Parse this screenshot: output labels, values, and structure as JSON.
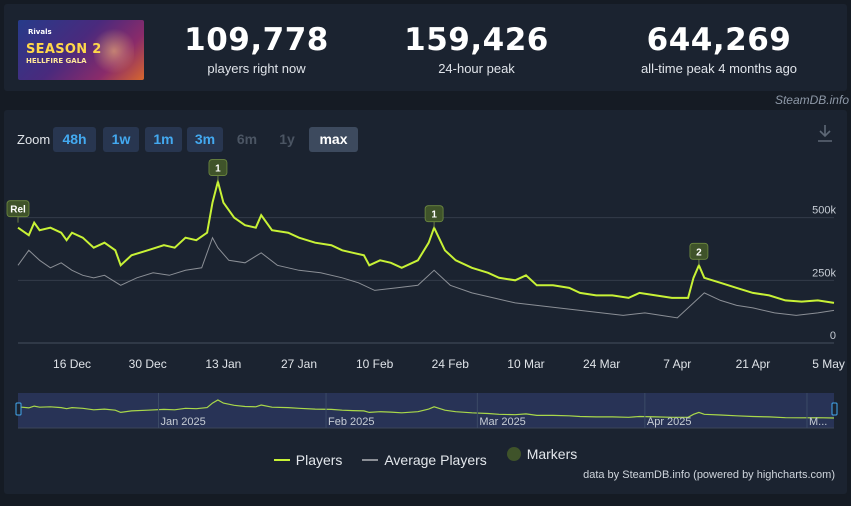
{
  "game": {
    "banner_line0": "Rivals",
    "banner_line1": "SEASON 2",
    "banner_line2": "HELLFIRE GALA"
  },
  "stats": [
    {
      "value": "109,778",
      "label": "players right now"
    },
    {
      "value": "159,426",
      "label": "24-hour peak"
    },
    {
      "value": "644,269",
      "label": "all-time peak 4 months ago"
    }
  ],
  "credit_top": "SteamDB.info",
  "zoom": {
    "label": "Zoom",
    "buttons": [
      {
        "label": "48h",
        "state": "on"
      },
      {
        "label": "1w",
        "state": "on"
      },
      {
        "label": "1m",
        "state": "on"
      },
      {
        "label": "3m",
        "state": "on"
      },
      {
        "label": "6m",
        "state": "off"
      },
      {
        "label": "1y",
        "state": "off"
      },
      {
        "label": "max",
        "state": "sel"
      }
    ]
  },
  "icons": {
    "download": "download-icon"
  },
  "legend": {
    "players": "Players",
    "average": "Average Players",
    "markers": "Markers"
  },
  "credit_bottom": "data by SteamDB.info (powered by highcharts.com)",
  "colors": {
    "players": "#c8f236",
    "average": "#8b8f96",
    "marker": "#3f532a",
    "accent": "#43a9f0"
  },
  "chart_data": {
    "type": "line",
    "x_unit": "date",
    "y_ticks": [
      "0",
      "250k",
      "500k"
    ],
    "y_tick_values": [
      0,
      250000,
      500000
    ],
    "ylim": [
      0,
      750000
    ],
    "x_ticks": [
      "16 Dec",
      "30 Dec",
      "13 Jan",
      "27 Jan",
      "10 Feb",
      "24 Feb",
      "10 Mar",
      "24 Mar",
      "7 Apr",
      "21 Apr",
      "5 May"
    ],
    "x_tick_dates": [
      "2024-12-16",
      "2024-12-30",
      "2025-01-13",
      "2025-01-27",
      "2025-02-10",
      "2025-02-24",
      "2025-03-10",
      "2025-03-24",
      "2025-04-07",
      "2025-04-21",
      "2025-05-05"
    ],
    "x_start": "2024-12-06",
    "x_end": "2025-05-06",
    "series": [
      {
        "name": "Players",
        "points": [
          [
            "2024-12-06",
            460000
          ],
          [
            "2024-12-08",
            430000
          ],
          [
            "2024-12-09",
            480000
          ],
          [
            "2024-12-10",
            450000
          ],
          [
            "2024-12-12",
            460000
          ],
          [
            "2024-12-14",
            440000
          ],
          [
            "2024-12-15",
            410000
          ],
          [
            "2024-12-16",
            440000
          ],
          [
            "2024-12-18",
            420000
          ],
          [
            "2024-12-20",
            380000
          ],
          [
            "2024-12-22",
            400000
          ],
          [
            "2024-12-24",
            370000
          ],
          [
            "2024-12-25",
            310000
          ],
          [
            "2024-12-27",
            350000
          ],
          [
            "2024-12-30",
            370000
          ],
          [
            "2025-01-02",
            390000
          ],
          [
            "2025-01-04",
            380000
          ],
          [
            "2025-01-06",
            420000
          ],
          [
            "2025-01-08",
            410000
          ],
          [
            "2025-01-10",
            440000
          ],
          [
            "2025-01-11",
            560000
          ],
          [
            "2025-01-12",
            644000
          ],
          [
            "2025-01-13",
            560000
          ],
          [
            "2025-01-15",
            500000
          ],
          [
            "2025-01-17",
            470000
          ],
          [
            "2025-01-19",
            460000
          ],
          [
            "2025-01-20",
            510000
          ],
          [
            "2025-01-22",
            450000
          ],
          [
            "2025-01-25",
            440000
          ],
          [
            "2025-01-27",
            420000
          ],
          [
            "2025-01-30",
            400000
          ],
          [
            "2025-02-02",
            390000
          ],
          [
            "2025-02-04",
            370000
          ],
          [
            "2025-02-06",
            360000
          ],
          [
            "2025-02-08",
            350000
          ],
          [
            "2025-02-09",
            310000
          ],
          [
            "2025-02-11",
            330000
          ],
          [
            "2025-02-13",
            320000
          ],
          [
            "2025-02-15",
            300000
          ],
          [
            "2025-02-18",
            330000
          ],
          [
            "2025-02-20",
            400000
          ],
          [
            "2025-02-21",
            460000
          ],
          [
            "2025-02-23",
            370000
          ],
          [
            "2025-02-25",
            330000
          ],
          [
            "2025-02-28",
            300000
          ],
          [
            "2025-03-03",
            280000
          ],
          [
            "2025-03-05",
            260000
          ],
          [
            "2025-03-08",
            250000
          ],
          [
            "2025-03-10",
            270000
          ],
          [
            "2025-03-12",
            230000
          ],
          [
            "2025-03-15",
            230000
          ],
          [
            "2025-03-18",
            220000
          ],
          [
            "2025-03-20",
            200000
          ],
          [
            "2025-03-23",
            190000
          ],
          [
            "2025-03-26",
            190000
          ],
          [
            "2025-03-29",
            180000
          ],
          [
            "2025-03-31",
            200000
          ],
          [
            "2025-04-03",
            190000
          ],
          [
            "2025-04-06",
            180000
          ],
          [
            "2025-04-09",
            180000
          ],
          [
            "2025-04-10",
            260000
          ],
          [
            "2025-04-11",
            310000
          ],
          [
            "2025-04-12",
            260000
          ],
          [
            "2025-04-15",
            240000
          ],
          [
            "2025-04-18",
            220000
          ],
          [
            "2025-04-21",
            200000
          ],
          [
            "2025-04-24",
            190000
          ],
          [
            "2025-04-27",
            170000
          ],
          [
            "2025-04-30",
            165000
          ],
          [
            "2025-05-03",
            170000
          ],
          [
            "2025-05-06",
            160000
          ]
        ]
      },
      {
        "name": "Average Players",
        "points": [
          [
            "2024-12-06",
            310000
          ],
          [
            "2024-12-08",
            370000
          ],
          [
            "2024-12-10",
            330000
          ],
          [
            "2024-12-12",
            300000
          ],
          [
            "2024-12-14",
            320000
          ],
          [
            "2024-12-16",
            290000
          ],
          [
            "2024-12-18",
            270000
          ],
          [
            "2024-12-20",
            260000
          ],
          [
            "2024-12-22",
            270000
          ],
          [
            "2024-12-25",
            230000
          ],
          [
            "2024-12-28",
            260000
          ],
          [
            "2024-12-31",
            280000
          ],
          [
            "2025-01-03",
            270000
          ],
          [
            "2025-01-06",
            290000
          ],
          [
            "2025-01-09",
            300000
          ],
          [
            "2025-01-11",
            420000
          ],
          [
            "2025-01-12",
            380000
          ],
          [
            "2025-01-14",
            330000
          ],
          [
            "2025-01-17",
            320000
          ],
          [
            "2025-01-20",
            360000
          ],
          [
            "2025-01-23",
            310000
          ],
          [
            "2025-01-27",
            290000
          ],
          [
            "2025-01-31",
            280000
          ],
          [
            "2025-02-04",
            260000
          ],
          [
            "2025-02-07",
            240000
          ],
          [
            "2025-02-10",
            210000
          ],
          [
            "2025-02-14",
            220000
          ],
          [
            "2025-02-18",
            230000
          ],
          [
            "2025-02-21",
            290000
          ],
          [
            "2025-02-24",
            230000
          ],
          [
            "2025-02-28",
            200000
          ],
          [
            "2025-03-04",
            180000
          ],
          [
            "2025-03-08",
            160000
          ],
          [
            "2025-03-12",
            150000
          ],
          [
            "2025-03-16",
            140000
          ],
          [
            "2025-03-20",
            130000
          ],
          [
            "2025-03-24",
            120000
          ],
          [
            "2025-03-28",
            110000
          ],
          [
            "2025-04-01",
            120000
          ],
          [
            "2025-04-04",
            110000
          ],
          [
            "2025-04-07",
            100000
          ],
          [
            "2025-04-10",
            160000
          ],
          [
            "2025-04-12",
            200000
          ],
          [
            "2025-04-15",
            170000
          ],
          [
            "2025-04-18",
            150000
          ],
          [
            "2025-04-21",
            140000
          ],
          [
            "2025-04-25",
            120000
          ],
          [
            "2025-04-29",
            110000
          ],
          [
            "2025-05-03",
            120000
          ],
          [
            "2025-05-06",
            130000
          ]
        ]
      }
    ],
    "markers": [
      {
        "label": "Rel",
        "date": "2024-12-06",
        "value": 480000
      },
      {
        "label": "1",
        "date": "2025-01-12",
        "value": 644000
      },
      {
        "label": "1",
        "date": "2025-02-21",
        "value": 460000
      },
      {
        "label": "2",
        "date": "2025-04-11",
        "value": 310000
      }
    ],
    "navigator": {
      "labels": [
        "Jan 2025",
        "Feb 2025",
        "Mar 2025",
        "Apr 2025",
        "M..."
      ],
      "label_dates": [
        "2025-01-01",
        "2025-02-01",
        "2025-03-01",
        "2025-04-01",
        "2025-05-01"
      ]
    }
  }
}
